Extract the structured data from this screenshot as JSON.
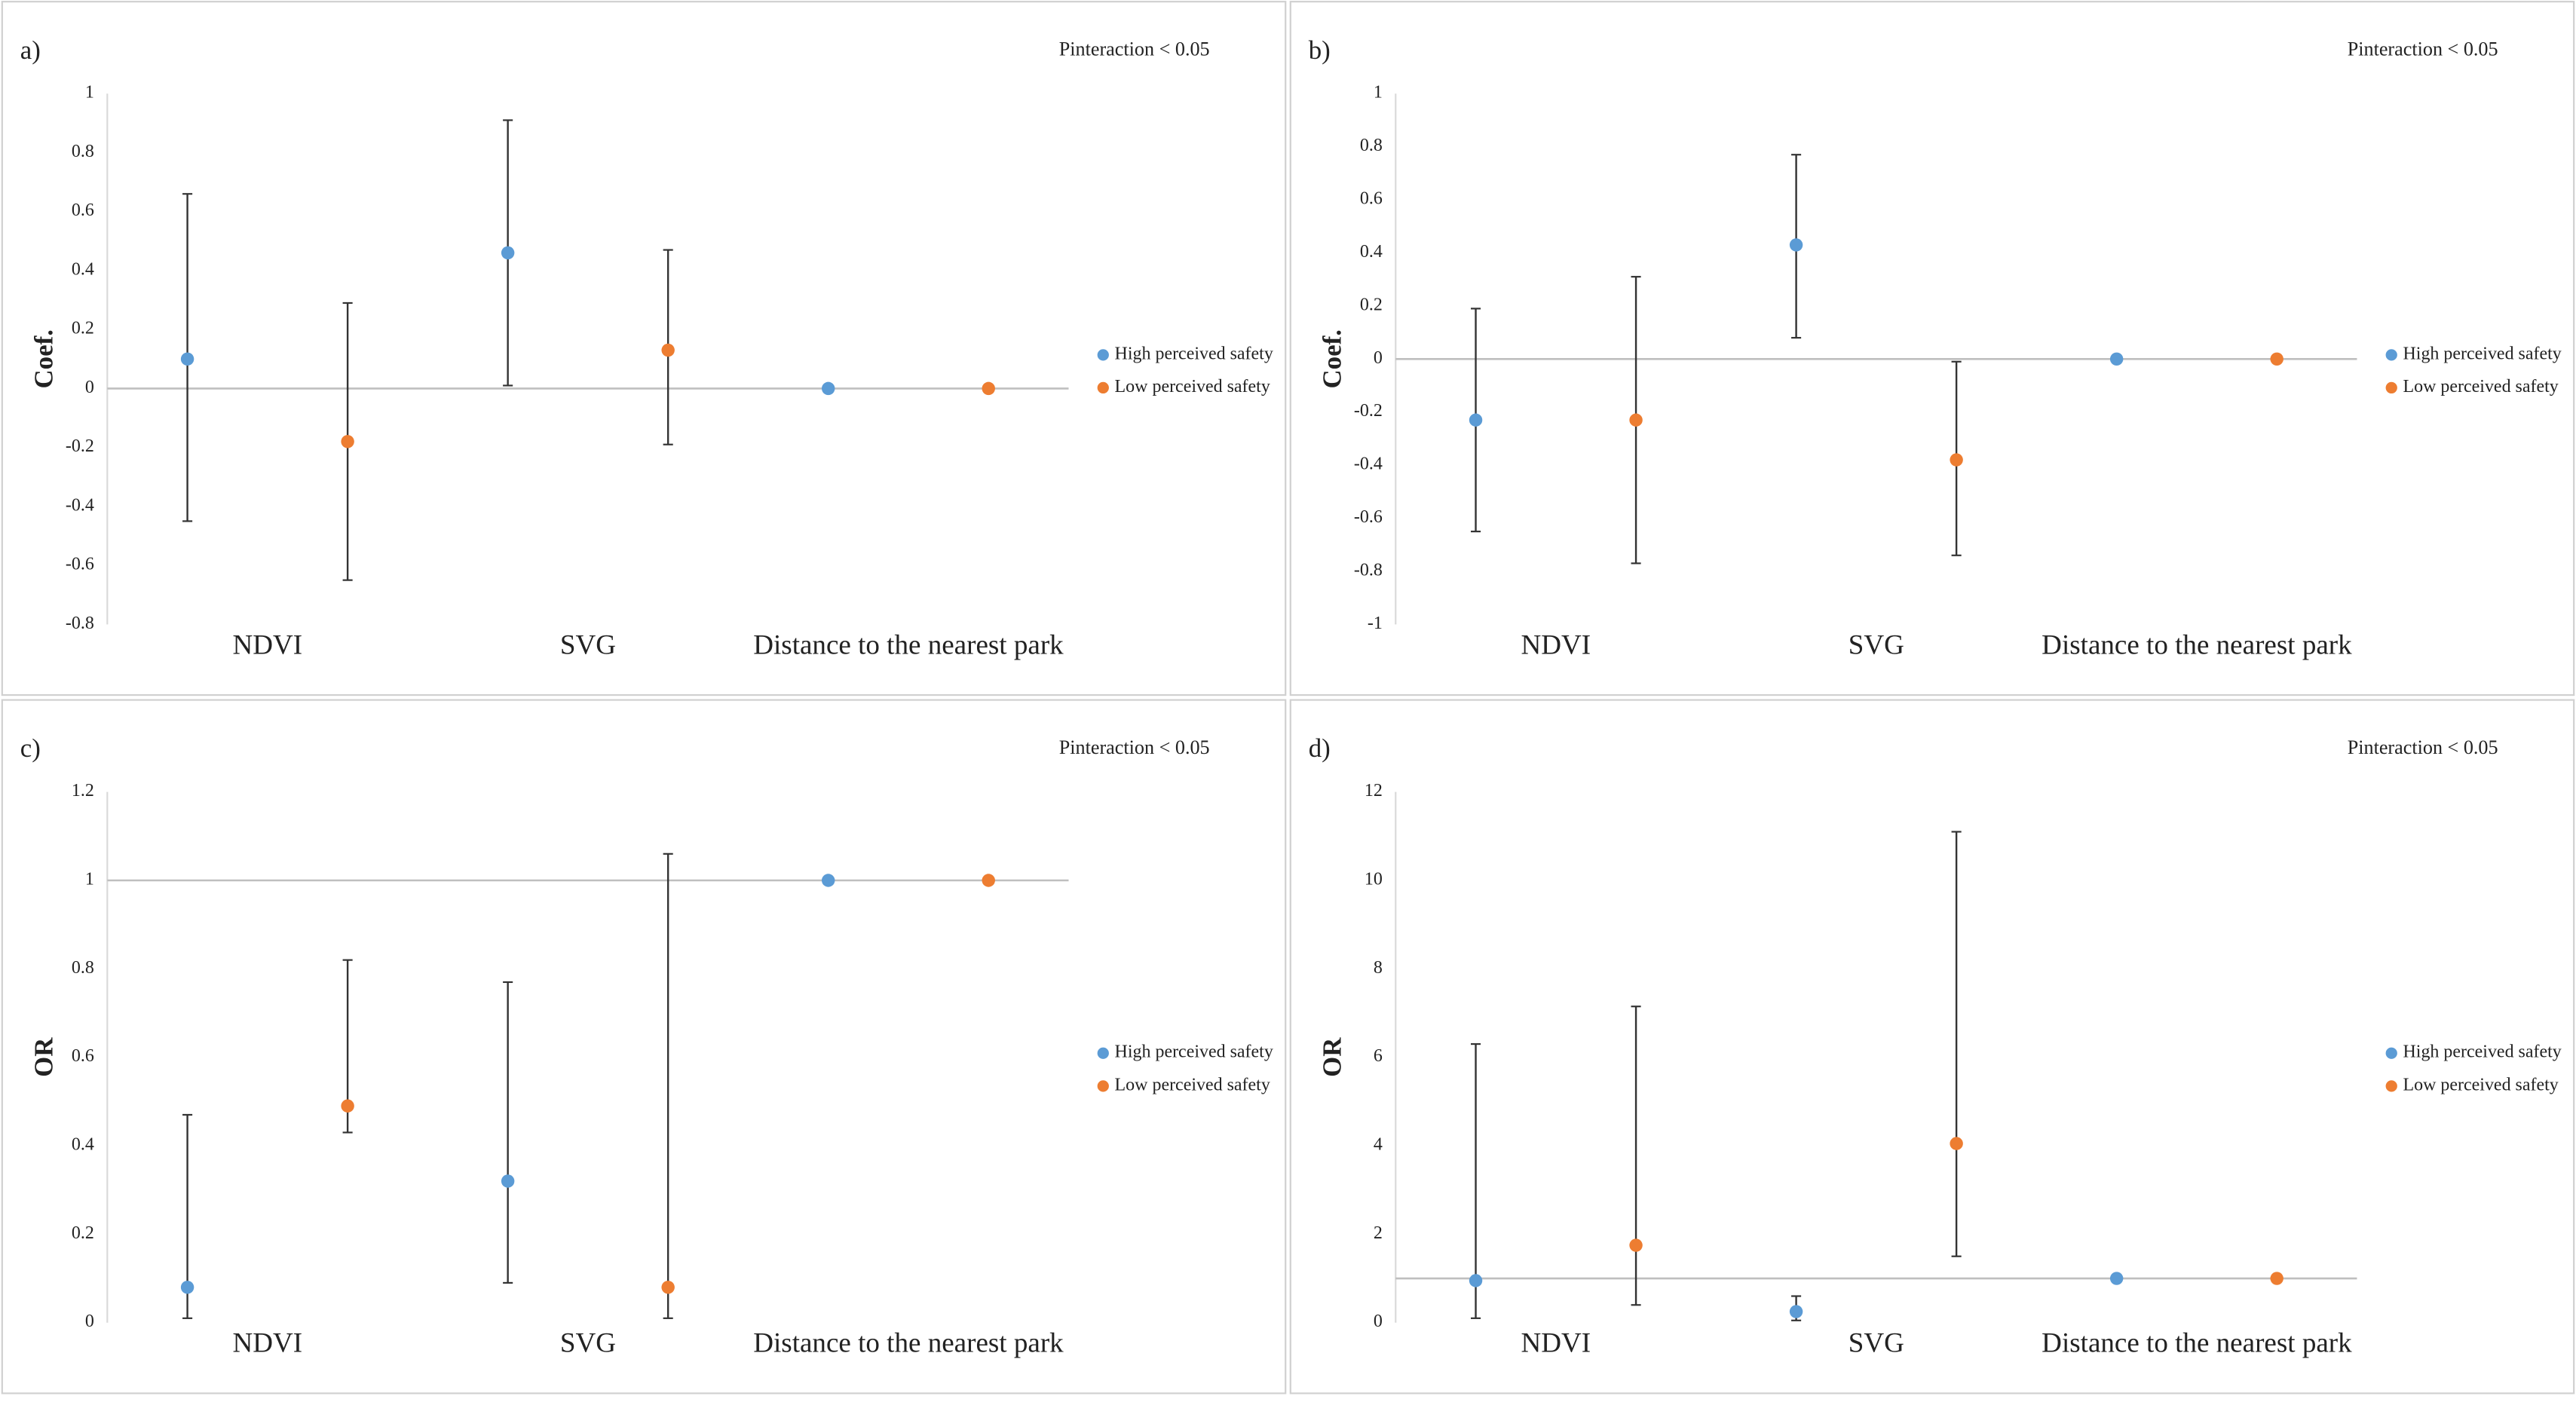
{
  "chart_data": [
    {
      "type": "errorbar",
      "panel_label": "a)",
      "annotation": "Pinteraction < 0.05",
      "ylabel": "Coef.",
      "categories": [
        "NDVI",
        "SVG",
        "Distance to the nearest park"
      ],
      "series": [
        {
          "name": "High perceived safety",
          "color": "#5b9bd5",
          "values": [
            0.1,
            0.46,
            0
          ],
          "lower": [
            -0.45,
            0.01,
            null
          ],
          "upper": [
            0.66,
            0.91,
            null
          ]
        },
        {
          "name": "Low perceived safety",
          "color": "#ed7d31",
          "values": [
            -0.18,
            0.13,
            0
          ],
          "lower": [
            -0.65,
            -0.19,
            null
          ],
          "upper": [
            0.29,
            0.47,
            null
          ]
        }
      ],
      "ylim": [
        -0.8,
        1
      ],
      "yticks": [
        -0.8,
        -0.6,
        -0.4,
        -0.2,
        0,
        0.2,
        0.4,
        0.6,
        0.8,
        1
      ],
      "refline": 0
    },
    {
      "type": "errorbar",
      "panel_label": "b)",
      "annotation": "Pinteraction < 0.05",
      "ylabel": "Coef.",
      "categories": [
        "NDVI",
        "SVG",
        "Distance to the nearest park"
      ],
      "series": [
        {
          "name": "High perceived safety",
          "color": "#5b9bd5",
          "values": [
            -0.23,
            0.43,
            0
          ],
          "lower": [
            -0.65,
            0.08,
            null
          ],
          "upper": [
            0.19,
            0.77,
            null
          ]
        },
        {
          "name": "Low perceived safety",
          "color": "#ed7d31",
          "values": [
            -0.23,
            -0.38,
            0
          ],
          "lower": [
            -0.77,
            -0.74,
            null
          ],
          "upper": [
            0.31,
            -0.01,
            null
          ]
        }
      ],
      "ylim": [
        -1,
        1
      ],
      "yticks": [
        -1,
        -0.8,
        -0.6,
        -0.4,
        -0.2,
        0,
        0.2,
        0.4,
        0.6,
        0.8,
        1
      ],
      "refline": 0
    },
    {
      "type": "errorbar",
      "panel_label": "c)",
      "annotation": "Pinteraction < 0.05",
      "ylabel": "OR",
      "categories": [
        "NDVI",
        "SVG",
        "Distance to the nearest park"
      ],
      "series": [
        {
          "name": "High perceived safety",
          "color": "#5b9bd5",
          "values": [
            0.08,
            0.32,
            1
          ],
          "lower": [
            0.01,
            0.09,
            null
          ],
          "upper": [
            0.47,
            0.77,
            null
          ]
        },
        {
          "name": "Low perceived safety",
          "color": "#ed7d31",
          "values": [
            0.49,
            0.08,
            1
          ],
          "lower": [
            0.43,
            0.01,
            null
          ],
          "upper": [
            0.82,
            1.06,
            null
          ]
        }
      ],
      "ylim": [
        0,
        1.2
      ],
      "yticks": [
        0,
        0.2,
        0.4,
        0.6,
        0.8,
        1,
        1.2
      ],
      "refline": 1
    },
    {
      "type": "errorbar",
      "panel_label": "d)",
      "annotation": "Pinteraction < 0.05",
      "ylabel": "OR",
      "categories": [
        "NDVI",
        "SVG",
        "Distance to the nearest park"
      ],
      "series": [
        {
          "name": "High perceived safety",
          "color": "#5b9bd5",
          "values": [
            0.95,
            0.25,
            1
          ],
          "lower": [
            0.1,
            0.05,
            null
          ],
          "upper": [
            6.3,
            0.6,
            null
          ]
        },
        {
          "name": "Low perceived safety",
          "color": "#ed7d31",
          "values": [
            1.75,
            4.05,
            1
          ],
          "lower": [
            0.4,
            1.5,
            null
          ],
          "upper": [
            7.15,
            11.1,
            null
          ]
        }
      ],
      "ylim": [
        0,
        12
      ],
      "yticks": [
        0,
        2,
        4,
        6,
        8,
        10,
        12
      ],
      "refline": 1
    }
  ]
}
